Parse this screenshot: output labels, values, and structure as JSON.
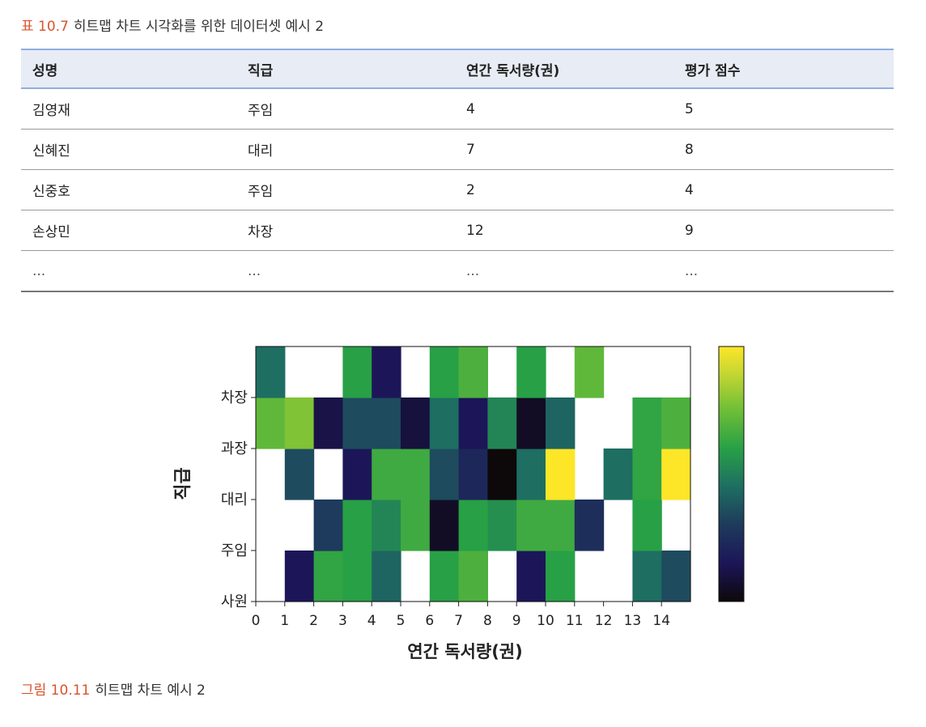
{
  "table": {
    "caption_label": "표 10.7",
    "caption_text": "히트맵 차트 시각화를 위한 데이터셋 예시 2",
    "headers": [
      "성명",
      "직급",
      "연간 독서량(권)",
      "평가 점수"
    ],
    "rows": [
      [
        "김영재",
        "주임",
        "4",
        "5"
      ],
      [
        "신혜진",
        "대리",
        "7",
        "8"
      ],
      [
        "신중호",
        "주임",
        "2",
        "4"
      ],
      [
        "손상민",
        "차장",
        "12",
        "9"
      ],
      [
        "...",
        "...",
        "...",
        "..."
      ]
    ]
  },
  "figure": {
    "caption_label": "그림 10.11",
    "caption_text": "히트맵 차트 예시 2"
  },
  "chart_data": {
    "type": "heatmap",
    "xlabel": "연간 독서량(권)",
    "ylabel": "직급",
    "x_ticks": [
      "0",
      "1",
      "2",
      "3",
      "4",
      "5",
      "6",
      "7",
      "8",
      "9",
      "10",
      "11",
      "12",
      "13",
      "14"
    ],
    "y_ticks": [
      "사원",
      "주임",
      "대리",
      "과장",
      "차장"
    ],
    "colormap": "viridis",
    "colorbar": true,
    "value_range": [
      0,
      1
    ],
    "cells": [
      [
        null,
        0.15,
        0.62,
        0.6,
        0.42,
        null,
        0.6,
        0.68,
        null,
        0.15,
        0.6,
        null,
        null,
        0.45,
        0.35
      ],
      [
        null,
        null,
        0.3,
        0.6,
        0.52,
        0.65,
        0.05,
        0.6,
        0.55,
        0.65,
        0.65,
        0.25,
        null,
        0.6,
        null
      ],
      [
        null,
        0.35,
        null,
        0.15,
        0.65,
        0.65,
        0.35,
        0.22,
        0.0,
        0.45,
        1.0,
        null,
        0.45,
        0.62,
        1.0
      ],
      [
        0.72,
        0.78,
        0.12,
        0.35,
        0.35,
        0.1,
        0.45,
        0.15,
        0.52,
        0.05,
        0.42,
        null,
        null,
        0.62,
        0.68
      ],
      [
        0.45,
        null,
        null,
        0.6,
        0.15,
        null,
        0.6,
        0.68,
        null,
        0.6,
        null,
        0.72,
        null,
        null,
        null
      ]
    ]
  }
}
